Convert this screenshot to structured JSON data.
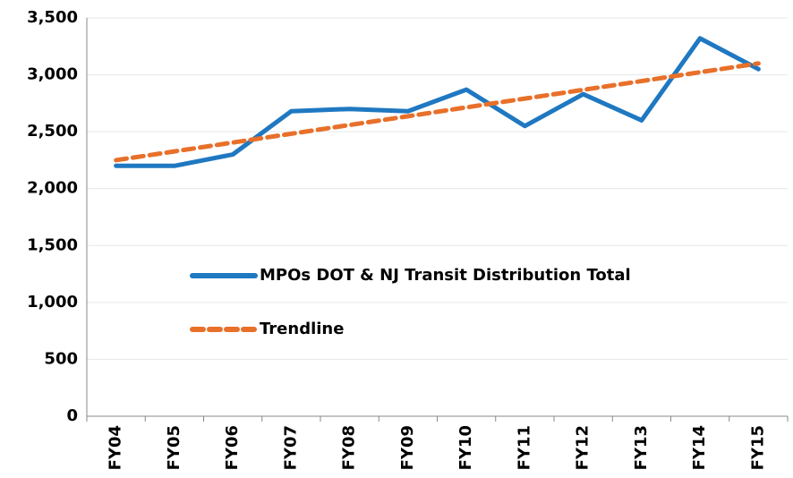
{
  "chart_data": {
    "type": "line",
    "categories": [
      "FY04",
      "FY05",
      "FY06",
      "FY07",
      "FY08",
      "FY09",
      "FY10",
      "FY11",
      "FY12",
      "FY13",
      "FY14",
      "FY15"
    ],
    "series": [
      {
        "name": "MPOs DOT & NJ Transit Distribution Total",
        "color": "#1f78c1",
        "dash": false,
        "values": [
          2200,
          2200,
          2300,
          2680,
          2700,
          2680,
          2870,
          2550,
          2830,
          2600,
          3320,
          3050
        ]
      },
      {
        "name": "Trendline",
        "color": "#e8702a",
        "dash": true,
        "values": [
          2250,
          2327,
          2405,
          2482,
          2559,
          2636,
          2714,
          2791,
          2868,
          2945,
          3023,
          3100
        ]
      }
    ],
    "ylim": [
      0,
      3500
    ],
    "yticks": [
      {
        "value": 0,
        "label": "0"
      },
      {
        "value": 500,
        "label": "500"
      },
      {
        "value": 1000,
        "label": "1,000"
      },
      {
        "value": 1500,
        "label": "1,500"
      },
      {
        "value": 2000,
        "label": "2,000"
      },
      {
        "value": 2500,
        "label": "2,500"
      },
      {
        "value": 3000,
        "label": "3,000"
      },
      {
        "value": 3500,
        "label": "3,500"
      }
    ],
    "grid": true
  }
}
